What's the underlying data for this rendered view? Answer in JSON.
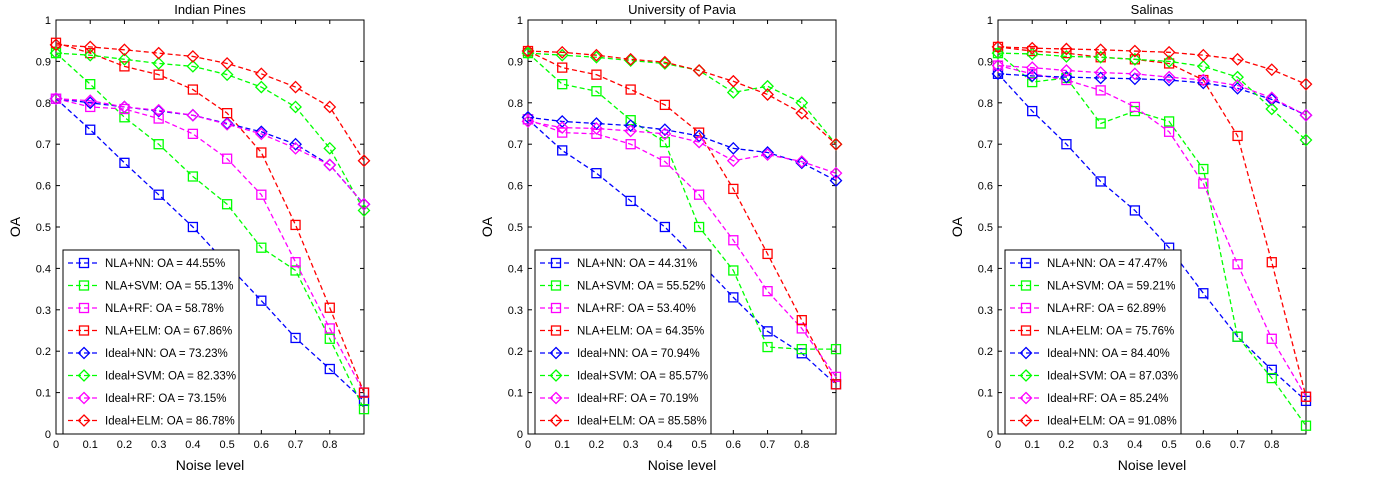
{
  "chart_data": [
    {
      "type": "line",
      "title": "Indian Pines",
      "xlabel": "Noise level",
      "ylabel": "OA",
      "xlim": [
        0,
        0.9
      ],
      "ylim": [
        0,
        1
      ],
      "x_ticks": [
        "0",
        "0.1",
        "0.2",
        "0.3",
        "0.4",
        "0.5",
        "0.6",
        "0.7",
        "0.8"
      ],
      "y_ticks": [
        "0",
        "0.1",
        "0.2",
        "0.3",
        "0.4",
        "0.5",
        "0.6",
        "0.7",
        "0.8",
        "0.9",
        "1"
      ],
      "x": [
        0,
        0.1,
        0.2,
        0.3,
        0.4,
        0.5,
        0.6,
        0.7,
        0.8,
        0.9
      ],
      "legend_position": "bottom-left",
      "grid": false,
      "series": [
        {
          "name": "NLA+NN: OA = 44.55%",
          "color": "#0000ff",
          "marker": "square",
          "values": [
            0.81,
            0.735,
            0.655,
            0.578,
            0.5,
            0.41,
            0.322,
            0.232,
            0.157,
            0.08
          ]
        },
        {
          "name": "NLA+SVM: OA = 55.13%",
          "color": "#00ff00",
          "marker": "square",
          "values": [
            0.92,
            0.845,
            0.765,
            0.7,
            0.622,
            0.555,
            0.45,
            0.395,
            0.23,
            0.06
          ]
        },
        {
          "name": "NLA+RF: OA = 58.78%",
          "color": "#ff00ff",
          "marker": "square",
          "values": [
            0.81,
            0.79,
            0.785,
            0.762,
            0.725,
            0.665,
            0.578,
            0.415,
            0.255,
            0.1
          ]
        },
        {
          "name": "NLA+ELM: OA = 67.86%",
          "color": "#ff0000",
          "marker": "square",
          "values": [
            0.945,
            0.92,
            0.888,
            0.868,
            0.832,
            0.775,
            0.68,
            0.505,
            0.305,
            0.1
          ]
        },
        {
          "name": "Ideal+NN: OA = 73.23%",
          "color": "#0000ff",
          "marker": "diamond",
          "values": [
            0.81,
            0.8,
            0.79,
            0.78,
            0.77,
            0.75,
            0.73,
            0.7,
            0.65,
            0.555
          ]
        },
        {
          "name": "Ideal+SVM: OA = 82.33%",
          "color": "#00ff00",
          "marker": "diamond",
          "values": [
            0.92,
            0.915,
            0.905,
            0.895,
            0.888,
            0.868,
            0.838,
            0.79,
            0.69,
            0.54
          ]
        },
        {
          "name": "Ideal+RF: OA = 73.15%",
          "color": "#ff00ff",
          "marker": "diamond",
          "values": [
            0.81,
            0.805,
            0.79,
            0.782,
            0.77,
            0.748,
            0.725,
            0.69,
            0.65,
            0.555
          ]
        },
        {
          "name": "Ideal+ELM: OA = 86.78%",
          "color": "#ff0000",
          "marker": "diamond",
          "values": [
            0.94,
            0.935,
            0.928,
            0.92,
            0.912,
            0.895,
            0.87,
            0.838,
            0.79,
            0.66
          ]
        }
      ]
    },
    {
      "type": "line",
      "title": "University of Pavia",
      "xlabel": "Noise level",
      "ylabel": "OA",
      "xlim": [
        0,
        0.9
      ],
      "ylim": [
        0,
        1
      ],
      "x_ticks": [
        "0",
        "0.1",
        "0.2",
        "0.3",
        "0.4",
        "0.5",
        "0.6",
        "0.7",
        "0.8"
      ],
      "y_ticks": [
        "0",
        "0.1",
        "0.2",
        "0.3",
        "0.4",
        "0.5",
        "0.6",
        "0.7",
        "0.8",
        "0.9",
        "1"
      ],
      "x": [
        0,
        0.1,
        0.2,
        0.3,
        0.4,
        0.5,
        0.6,
        0.7,
        0.8,
        0.9
      ],
      "legend_position": "bottom-left",
      "grid": false,
      "series": [
        {
          "name": "NLA+NN: OA = 44.31%",
          "color": "#0000ff",
          "marker": "square",
          "values": [
            0.76,
            0.685,
            0.63,
            0.563,
            0.5,
            0.417,
            0.33,
            0.248,
            0.195,
            0.12
          ]
        },
        {
          "name": "NLA+SVM: OA = 55.52%",
          "color": "#00ff00",
          "marker": "square",
          "values": [
            0.92,
            0.845,
            0.828,
            0.758,
            0.705,
            0.5,
            0.395,
            0.21,
            0.205,
            0.205
          ]
        },
        {
          "name": "NLA+RF: OA = 53.40%",
          "color": "#ff00ff",
          "marker": "square",
          "values": [
            0.76,
            0.728,
            0.725,
            0.7,
            0.658,
            0.578,
            0.468,
            0.345,
            0.255,
            0.138
          ]
        },
        {
          "name": "NLA+ELM: OA = 64.35%",
          "color": "#ff0000",
          "marker": "square",
          "values": [
            0.925,
            0.885,
            0.868,
            0.832,
            0.795,
            0.728,
            0.592,
            0.435,
            0.275,
            0.12
          ]
        },
        {
          "name": "Ideal+NN: OA = 70.94%",
          "color": "#0000ff",
          "marker": "diamond",
          "values": [
            0.765,
            0.755,
            0.75,
            0.745,
            0.735,
            0.72,
            0.69,
            0.68,
            0.655,
            0.612
          ]
        },
        {
          "name": "Ideal+SVM: OA = 85.57%",
          "color": "#00ff00",
          "marker": "diamond",
          "values": [
            0.92,
            0.915,
            0.91,
            0.902,
            0.895,
            0.878,
            0.825,
            0.84,
            0.8,
            0.7
          ]
        },
        {
          "name": "Ideal+RF: OA = 70.19%",
          "color": "#ff00ff",
          "marker": "diamond",
          "values": [
            0.755,
            0.74,
            0.738,
            0.732,
            0.725,
            0.705,
            0.66,
            0.675,
            0.658,
            0.63
          ]
        },
        {
          "name": "Ideal+ELM: OA = 85.58%",
          "color": "#ff0000",
          "marker": "diamond",
          "values": [
            0.925,
            0.922,
            0.915,
            0.905,
            0.898,
            0.878,
            0.852,
            0.82,
            0.775,
            0.7
          ]
        }
      ]
    },
    {
      "type": "line",
      "title": "Salinas",
      "xlabel": "Noise level",
      "ylabel": "OA",
      "xlim": [
        0,
        0.9
      ],
      "ylim": [
        0,
        1
      ],
      "x_ticks": [
        "0",
        "0.1",
        "0.2",
        "0.3",
        "0.4",
        "0.5",
        "0.6",
        "0.7",
        "0.8"
      ],
      "y_ticks": [
        "0",
        "0.1",
        "0.2",
        "0.3",
        "0.4",
        "0.5",
        "0.6",
        "0.7",
        "0.8",
        "0.9",
        "1"
      ],
      "x": [
        0,
        0.1,
        0.2,
        0.3,
        0.4,
        0.5,
        0.6,
        0.7,
        0.8,
        0.9
      ],
      "legend_position": "bottom-left",
      "grid": false,
      "series": [
        {
          "name": "NLA+NN: OA = 47.47%",
          "color": "#0000ff",
          "marker": "square",
          "values": [
            0.87,
            0.78,
            0.7,
            0.61,
            0.54,
            0.45,
            0.34,
            0.235,
            0.155,
            0.08
          ]
        },
        {
          "name": "NLA+SVM: OA = 59.21%",
          "color": "#00ff00",
          "marker": "square",
          "values": [
            0.92,
            0.85,
            0.86,
            0.75,
            0.78,
            0.755,
            0.64,
            0.235,
            0.135,
            0.02
          ]
        },
        {
          "name": "NLA+RF: OA = 62.89%",
          "color": "#ff00ff",
          "marker": "square",
          "values": [
            0.89,
            0.87,
            0.855,
            0.83,
            0.79,
            0.73,
            0.605,
            0.41,
            0.23,
            0.09
          ]
        },
        {
          "name": "NLA+ELM: OA = 75.76%",
          "color": "#ff0000",
          "marker": "square",
          "values": [
            0.935,
            0.925,
            0.92,
            0.91,
            0.905,
            0.895,
            0.855,
            0.72,
            0.415,
            0.09
          ]
        },
        {
          "name": "Ideal+NN: OA = 84.40%",
          "color": "#0000ff",
          "marker": "diamond",
          "values": [
            0.87,
            0.865,
            0.862,
            0.86,
            0.858,
            0.855,
            0.848,
            0.835,
            0.808,
            0.77
          ]
        },
        {
          "name": "Ideal+SVM: OA = 87.03%",
          "color": "#00ff00",
          "marker": "diamond",
          "values": [
            0.92,
            0.918,
            0.912,
            0.91,
            0.905,
            0.9,
            0.888,
            0.862,
            0.785,
            0.71
          ]
        },
        {
          "name": "Ideal+RF: OA = 85.24%",
          "color": "#ff00ff",
          "marker": "diamond",
          "values": [
            0.89,
            0.885,
            0.878,
            0.873,
            0.87,
            0.862,
            0.855,
            0.842,
            0.812,
            0.77
          ]
        },
        {
          "name": "Ideal+ELM: OA = 91.08%",
          "color": "#ff0000",
          "marker": "diamond",
          "values": [
            0.935,
            0.932,
            0.93,
            0.928,
            0.925,
            0.922,
            0.915,
            0.905,
            0.88,
            0.845
          ]
        }
      ]
    }
  ]
}
